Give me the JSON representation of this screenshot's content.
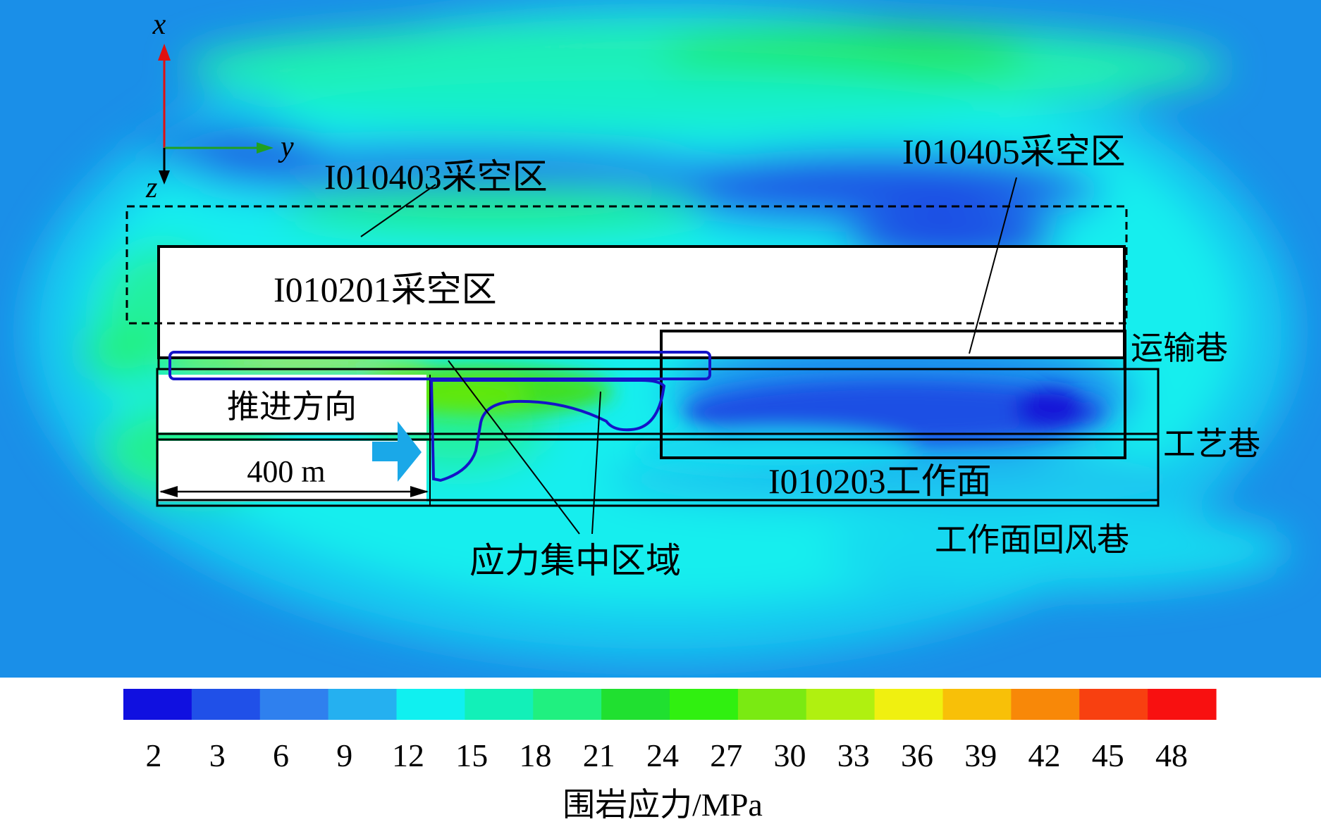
{
  "axes": {
    "x": "x",
    "y": "y",
    "z": "z"
  },
  "labels": {
    "goaf_403": "I010403采空区",
    "goaf_405": "I010405采空区",
    "goaf_201": "I010201采空区",
    "transport_roadway": "运输巷",
    "process_roadway": "工艺巷",
    "working_face": "I010203工作面",
    "return_roadway": "工作面回风巷",
    "advance_direction": "推进方向",
    "distance": "400 m",
    "stress_zone": "应力集中区域"
  },
  "legend": {
    "title": "围岩应力/MPa",
    "ticks": [
      "2",
      "3",
      "6",
      "9",
      "12",
      "15",
      "18",
      "21",
      "24",
      "27",
      "30",
      "33",
      "36",
      "39",
      "42",
      "45",
      "48"
    ],
    "colors": [
      "#1010e0",
      "#2050e8",
      "#2f80ee",
      "#25b0f0",
      "#10f0f0",
      "#12f0b8",
      "#20f080",
      "#20e030",
      "#30f010",
      "#7aea12",
      "#b0f010",
      "#f0f010",
      "#f8c008",
      "#f88808",
      "#f84010",
      "#f81010"
    ]
  },
  "colors": {
    "background_field": "#18d8ee",
    "arrow": "#1aa8e8",
    "stress_outline": "#1414c8"
  }
}
